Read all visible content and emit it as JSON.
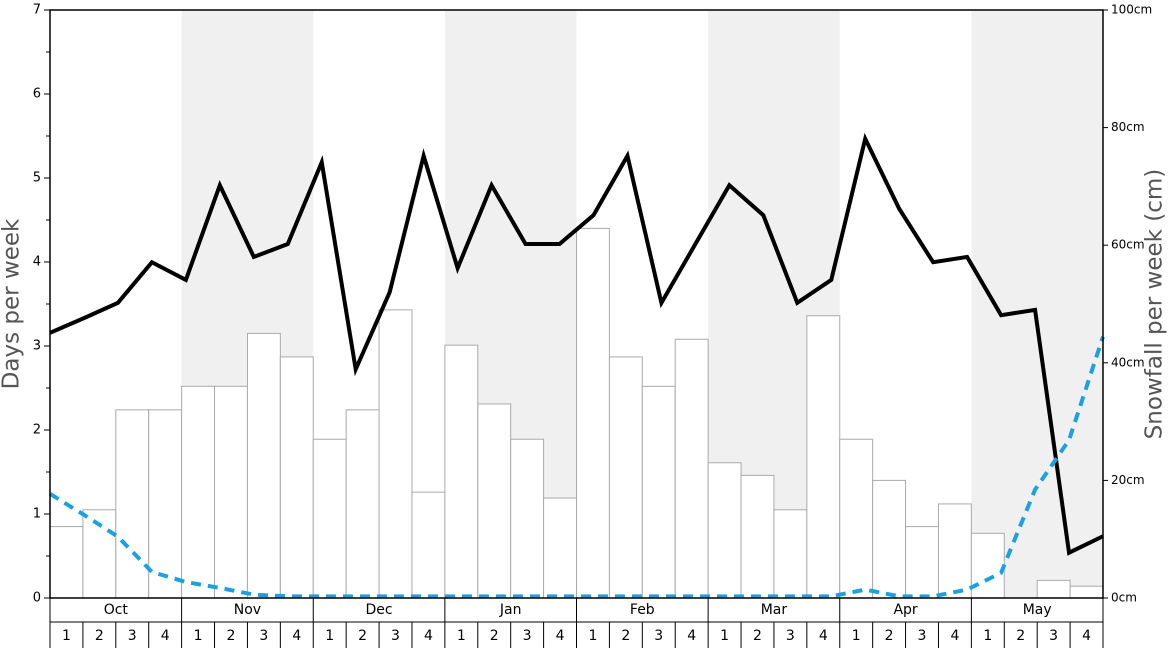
{
  "chart_data": {
    "type": "bar-line",
    "y_label": "Days per week",
    "y2_label": "Snowfall per week (cm)",
    "months": [
      "Oct",
      "Nov",
      "Dec",
      "Jan",
      "Feb",
      "Mar",
      "Apr",
      "May"
    ],
    "categories": [
      "1",
      "2",
      "3",
      "4",
      "1",
      "2",
      "3",
      "4",
      "1",
      "2",
      "3",
      "4",
      "1",
      "2",
      "3",
      "4",
      "1",
      "2",
      "3",
      "4",
      "1",
      "2",
      "3",
      "4",
      "1",
      "2",
      "3",
      "4",
      "1",
      "2",
      "3",
      "4"
    ],
    "ylim": [
      0,
      7
    ],
    "yticks": [
      0,
      1,
      2,
      3,
      4,
      5,
      6,
      7
    ],
    "y2lim": [
      0,
      100
    ],
    "y2ticks": [
      {
        "value": 0,
        "label": "0cm"
      },
      {
        "value": 20,
        "label": "20cm"
      },
      {
        "value": 40,
        "label": "40cm"
      },
      {
        "value": 60,
        "label": "60cm"
      },
      {
        "value": 80,
        "label": "80cm"
      },
      {
        "value": 100,
        "label": "100cm"
      }
    ],
    "series": [
      {
        "kind": "bar",
        "color": "#ffffff",
        "values": [
          0.85,
          1.05,
          2.24,
          2.24,
          2.52,
          2.52,
          3.15,
          2.87,
          1.89,
          2.24,
          3.43,
          1.26,
          3.01,
          2.31,
          1.89,
          1.19,
          4.4,
          2.87,
          2.52,
          3.08,
          1.61,
          1.46,
          1.05,
          3.36,
          1.89,
          1.4,
          0.85,
          1.12,
          0.77,
          0,
          0.21,
          0.14
        ]
      },
      {
        "kind": "line",
        "axis": "y2",
        "color": "#000000",
        "values": [
          45.1,
          47.6,
          50.2,
          57.1,
          54.1,
          70.2,
          58.0,
          60.2,
          74.1,
          38.9,
          52.0,
          75.2,
          56.1,
          70.2,
          60.2,
          60.2,
          65.1,
          75.2,
          50.2,
          60.2,
          70.2,
          65.1,
          50.2,
          54.1,
          78.1,
          66.2,
          57.1,
          58.0,
          48.1,
          49.0,
          7.7,
          10.5
        ]
      },
      {
        "kind": "dashed-line",
        "color": "#1ba1e2",
        "values": [
          1.24,
          0.99,
          0.73,
          0.31,
          0.19,
          0.12,
          0.04,
          0.02,
          0.02,
          0.02,
          0.02,
          0.02,
          0.02,
          0.02,
          0.02,
          0.02,
          0.02,
          0.02,
          0.02,
          0.02,
          0.02,
          0.02,
          0.02,
          0.02,
          0.1,
          0.02,
          0.02,
          0.1,
          0.3,
          1.29,
          1.88,
          3.11
        ]
      }
    ]
  }
}
